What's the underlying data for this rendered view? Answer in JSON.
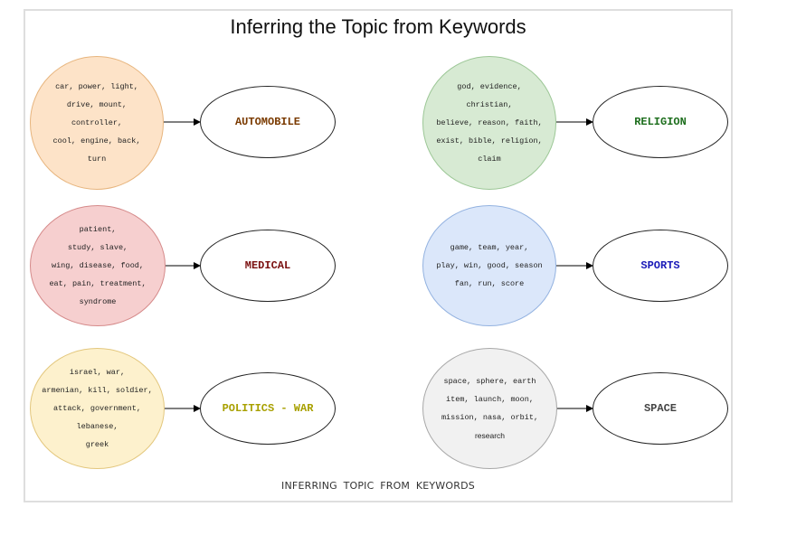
{
  "title": "Inferring the Topic from Keywords",
  "caption": "INFERRING TOPIC FROM KEYWORDS",
  "topics": [
    {
      "label": "AUTOMOBILE",
      "label_color": "#7a3a00",
      "fill": "#fde3c8",
      "border": "#e7b57e",
      "keywords": [
        "car, power, light,",
        "drive, mount,",
        "controller,",
        "cool, engine, back,",
        "turn"
      ]
    },
    {
      "label": "RELIGION",
      "label_color": "#1d6e1d",
      "fill": "#d7ead3",
      "border": "#9cc796",
      "keywords": [
        "god, evidence,",
        "christian,",
        "believe, reason, faith,",
        "exist, bible, religion,",
        "claim"
      ]
    },
    {
      "label": "MEDICAL",
      "label_color": "#7a0f0f",
      "fill": "#f6cfcf",
      "border": "#d58a8a",
      "keywords": [
        "patient,",
        "study, slave,",
        "wing, disease, food,",
        "eat, pain, treatment,",
        "syndrome"
      ]
    },
    {
      "label": "SPORTS",
      "label_color": "#1a1ab8",
      "fill": "#dbe7fa",
      "border": "#93b2e0",
      "keywords": [
        "game, team, year,",
        "play, win, good, season",
        "fan, run, score"
      ]
    },
    {
      "label": "POLITICS - WAR",
      "label_color": "#a8a000",
      "fill": "#fdf1cd",
      "border": "#e3c77d",
      "keywords": [
        "israel, war,",
        "armenian, kill, soldier,",
        "attack, government,",
        "lebanese,",
        "greek"
      ]
    },
    {
      "label": "SPACE",
      "label_color": "#444444",
      "fill": "#f1f1f1",
      "border": "#a8a8a8",
      "keywords": [
        "space, sphere, earth",
        "item, launch, moon,",
        "mission, nasa, orbit,",
        "research"
      ]
    }
  ]
}
